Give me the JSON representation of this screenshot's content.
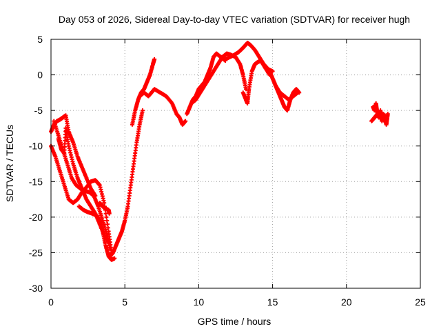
{
  "chart_data": {
    "type": "scatter",
    "title": "Day 053 of 2026, Sidereal Day-to-day VTEC variation (SDTVAR) for receiver hugh",
    "xlabel": "GPS time / hours",
    "ylabel": "SDTVAR / TECUs",
    "xlim": [
      0,
      25
    ],
    "ylim": [
      -30,
      5
    ],
    "xticks": [
      0,
      5,
      10,
      15,
      20,
      25
    ],
    "yticks": [
      -30,
      -25,
      -20,
      -15,
      -10,
      -5,
      0,
      5
    ],
    "grid": true,
    "marker": "plus",
    "color": "#ff0000",
    "series": [
      {
        "x": [
          0.0,
          0.3,
          0.6,
          0.9,
          1.2,
          1.5,
          1.8,
          2.1,
          2.4,
          2.7,
          3.0,
          3.3,
          3.6,
          3.9,
          4.1
        ],
        "y": [
          -10.0,
          -11.5,
          -13.5,
          -15.5,
          -17.5,
          -18.0,
          -17.5,
          -16.5,
          -15.8,
          -15.0,
          -14.8,
          -15.5,
          -18.0,
          -22.0,
          -25.0
        ]
      },
      {
        "x": [
          0.0,
          0.2,
          0.4,
          0.6,
          0.8,
          1.0,
          1.2,
          1.5,
          1.8,
          2.1,
          2.4,
          2.7,
          3.0
        ],
        "y": [
          -8.0,
          -7.0,
          -6.5,
          -6.3,
          -6.0,
          -5.7,
          -8.0,
          -9.5,
          -11.5,
          -13.0,
          -14.5,
          -16.0,
          -17.0
        ]
      },
      {
        "x": [
          0.2,
          0.5,
          0.8,
          1.1,
          1.4,
          1.7,
          2.0,
          2.3,
          2.6,
          2.9,
          3.2,
          3.5,
          3.8,
          4.0
        ],
        "y": [
          -6.5,
          -8.5,
          -10.5,
          -12.5,
          -14.5,
          -15.5,
          -16.0,
          -16.3,
          -16.5,
          -17.0,
          -18.5,
          -20.5,
          -22.5,
          -24.5
        ]
      },
      {
        "x": [
          0.5,
          0.7,
          0.9,
          1.0,
          1.2,
          1.5,
          1.8,
          2.1,
          2.4,
          2.7,
          3.0,
          3.3,
          3.6,
          3.9
        ],
        "y": [
          -9.0,
          -10.5,
          -11.0,
          -7.5,
          -10.0,
          -12.5,
          -14.5,
          -16.0,
          -17.5,
          -18.5,
          -19.5,
          -21.0,
          -22.5,
          -23.5
        ]
      },
      {
        "x": [
          1.9,
          2.2,
          2.5,
          2.8,
          3.1,
          3.3,
          3.5,
          3.7,
          3.9,
          4.1,
          4.3
        ],
        "y": [
          -18.5,
          -19.0,
          -19.3,
          -19.5,
          -19.8,
          -20.5,
          -22.0,
          -24.0,
          -25.5,
          -26.0,
          -25.8
        ]
      },
      {
        "x": [
          3.3,
          3.5,
          3.7,
          3.9,
          3.95
        ],
        "y": [
          -18.0,
          -18.5,
          -18.8,
          -19.0,
          -19.5
        ]
      },
      {
        "x": [
          4.0,
          4.2,
          4.4,
          4.6,
          4.8,
          5.0,
          5.2,
          5.4,
          5.6,
          5.8,
          6.0,
          6.2
        ],
        "y": [
          -25.5,
          -25.0,
          -24.0,
          -23.0,
          -22.0,
          -20.5,
          -18.5,
          -15.5,
          -12.5,
          -9.5,
          -7.0,
          -5.0
        ]
      },
      {
        "x": [
          5.5,
          5.7,
          5.9,
          6.1,
          6.3,
          6.5,
          6.7,
          6.9,
          7.0
        ],
        "y": [
          -7.0,
          -5.0,
          -3.5,
          -2.5,
          -2.0,
          -1.0,
          0.0,
          1.5,
          2.2
        ]
      },
      {
        "x": [
          6.0,
          6.3,
          6.6,
          7.0,
          7.4,
          7.8,
          8.2,
          8.5,
          8.7,
          8.9,
          9.1
        ],
        "y": [
          -3.0,
          -2.5,
          -3.0,
          -2.0,
          -2.5,
          -3.0,
          -4.0,
          -5.5,
          -6.0,
          -7.0,
          -6.5
        ]
      },
      {
        "x": [
          9.2,
          9.4,
          9.6,
          9.8,
          10.0,
          10.2,
          10.4,
          10.6,
          10.8,
          11.0,
          11.2,
          11.5,
          11.8
        ],
        "y": [
          -5.5,
          -4.5,
          -3.5,
          -3.0,
          -2.0,
          -1.5,
          -1.0,
          0.0,
          1.0,
          2.5,
          3.0,
          2.5,
          2.0
        ]
      },
      {
        "x": [
          9.5,
          9.8,
          10.1,
          10.4,
          10.7,
          11.0,
          11.3,
          11.6,
          11.9,
          12.2,
          12.5,
          12.8,
          13.0,
          13.2
        ],
        "y": [
          -4.0,
          -3.5,
          -2.5,
          -1.5,
          -0.5,
          0.5,
          1.5,
          2.5,
          3.0,
          2.8,
          2.5,
          1.5,
          0.0,
          -2.0
        ]
      },
      {
        "x": [
          11.5,
          11.8,
          12.1,
          12.4,
          12.7,
          13.0,
          13.3,
          13.5,
          13.8,
          14.1,
          14.4,
          14.7,
          15.0
        ],
        "y": [
          2.5,
          2.2,
          2.5,
          2.8,
          3.2,
          3.8,
          4.5,
          4.2,
          3.5,
          2.5,
          1.5,
          0.8,
          0.5
        ]
      },
      {
        "x": [
          13.0,
          13.2,
          13.3,
          13.4,
          13.6,
          13.8,
          14.0,
          14.2,
          14.5,
          14.8
        ],
        "y": [
          -2.5,
          -3.5,
          -4.0,
          -2.0,
          0.5,
          1.5,
          1.8,
          2.0,
          1.0,
          0.0
        ]
      },
      {
        "x": [
          14.5,
          14.8,
          15.0,
          15.2,
          15.4,
          15.6,
          15.8,
          16.0,
          16.2,
          16.4,
          16.6,
          16.8
        ],
        "y": [
          1.0,
          0.5,
          -0.5,
          -1.5,
          -2.5,
          -3.5,
          -4.5,
          -5.0,
          -3.5,
          -2.5,
          -2.0,
          -2.5
        ]
      },
      {
        "x": [
          15.2,
          15.5,
          15.8,
          16.1,
          16.4,
          16.7
        ],
        "y": [
          -1.5,
          -2.5,
          -3.0,
          -3.5,
          -3.0,
          -2.5
        ]
      },
      {
        "x": [
          21.8,
          21.9,
          22.0,
          22.1,
          22.2,
          22.3,
          22.4,
          22.5,
          22.6,
          22.7,
          22.8
        ],
        "y": [
          -4.5,
          -5.0,
          -4.0,
          -5.5,
          -6.0,
          -5.0,
          -6.5,
          -5.5,
          -6.0,
          -7.0,
          -5.5
        ]
      },
      {
        "x": [
          21.7,
          21.9,
          22.1,
          22.3,
          22.5,
          22.7
        ],
        "y": [
          -6.5,
          -6.0,
          -5.5,
          -5.8,
          -6.2,
          -6.8
        ]
      }
    ]
  }
}
